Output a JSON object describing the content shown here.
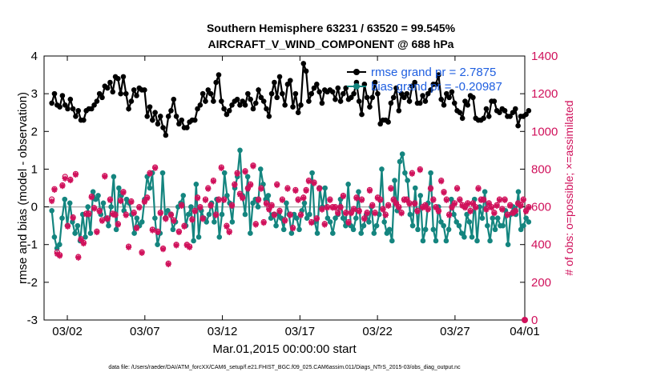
{
  "chart_data": {
    "type": "line",
    "title": "Southern Hemisphere 63231 / 63520 = 99.545%",
    "subtitle": "AIRCRAFT_V_WIND_COMPONENT @ 688 hPa",
    "xlabel": "Mar.01,2015 00:00:00 start",
    "ylabel": "rmse and bias (model - observation)",
    "ylabel_right": "# of obs: o=possible; ×=assimilated",
    "ylim": [
      -3,
      4
    ],
    "ylim_right": [
      0,
      1400
    ],
    "xlim": [
      0.5,
      31.5
    ],
    "x_tick_values": [
      2,
      7,
      12,
      17,
      22,
      27,
      32
    ],
    "x_tick_labels": [
      "03/02",
      "03/07",
      "03/12",
      "03/17",
      "03/22",
      "03/27",
      "04/01"
    ],
    "y_ticks_left": [
      "4",
      "3",
      "2",
      "1",
      "0",
      "-1",
      "-2",
      "-3"
    ],
    "y_ticks_right": [
      "1400",
      "1200",
      "1000",
      "800",
      "600",
      "400",
      "200",
      "0"
    ],
    "legend": [
      "rmse grand pr = 2.7875",
      "bias grand pr = -0.20987"
    ],
    "footer": "data file: /Users/raeder/DAI/ATM_forcXX/CAM6_setup/f.e21.FHIST_BGC.f09_025.CAM6assim.011/Diags_NTrS_2015-03/obs_diag_output.nc",
    "series": [
      {
        "name": "rmse",
        "color": "#000000",
        "values": [
          2.75,
          3.0,
          2.7,
          2.65,
          2.95,
          2.7,
          2.6,
          2.85,
          2.6,
          2.4,
          2.55,
          2.3,
          2.3,
          2.55,
          2.6,
          2.6,
          2.7,
          2.8,
          3.0,
          2.9,
          3.2,
          3.15,
          3.3,
          3.05,
          3.45,
          3.4,
          3.0,
          3.45,
          3.0,
          2.6,
          2.8,
          3.1,
          2.95,
          3.15,
          3.1,
          3.1,
          2.4,
          2.65,
          2.3,
          2.5,
          2.2,
          2.4,
          2.1,
          1.9,
          2.4,
          2.55,
          2.85,
          2.4,
          2.2,
          2.3,
          2.1,
          2.1,
          2.25,
          2.3,
          2.3,
          2.6,
          2.7,
          3.0,
          2.8,
          3.1,
          3.0,
          2.8,
          3.3,
          3.5,
          2.8,
          2.6,
          2.45,
          2.55,
          2.7,
          2.8,
          2.85,
          2.7,
          2.8,
          2.7,
          3.0,
          2.85,
          2.6,
          2.75,
          3.1,
          2.9,
          2.8,
          2.6,
          2.4,
          3.0,
          3.3,
          2.9,
          3.45,
          3.0,
          2.7,
          3.25,
          3.35,
          2.65,
          3.0,
          2.5,
          2.7,
          3.8,
          3.6,
          2.8,
          3.0,
          3.15,
          3.25,
          3.05,
          2.75,
          3.1,
          3.05,
          3.1,
          3.05,
          2.85,
          3.15,
          2.8,
          3.0,
          3.15,
          2.85,
          2.9,
          3.0,
          3.3,
          2.8,
          2.45,
          3.25,
          2.9,
          2.65,
          2.9,
          3.3,
          3.0,
          2.2,
          2.3,
          2.3,
          2.25,
          2.75,
          2.9,
          3.15,
          2.55,
          3.0,
          2.9,
          3.0,
          2.8,
          3.2,
          3.3,
          2.75,
          2.75,
          2.95,
          2.8,
          3.0,
          3.1,
          3.25,
          3.25,
          3.5,
          2.85,
          2.7,
          3.0,
          2.9,
          3.05,
          2.75,
          2.55,
          2.5,
          2.35,
          2.8,
          2.7,
          2.95,
          2.9,
          2.35,
          2.3,
          2.3,
          2.35,
          2.6,
          2.4,
          2.8,
          2.8,
          2.55,
          2.5,
          2.6,
          2.55,
          2.4,
          2.4,
          2.5,
          2.6,
          2.15,
          2.4,
          2.4,
          2.45,
          2.55
        ]
      },
      {
        "name": "bias",
        "color": "#14857f",
        "values": [
          -0.1,
          -0.8,
          -1.1,
          -1.0,
          -0.3,
          0.2,
          -0.5,
          0.1,
          -0.4,
          -0.7,
          -0.5,
          -0.9,
          -0.2,
          -0.8,
          0.0,
          -0.7,
          0.4,
          0.2,
          0.3,
          -0.2,
          0.1,
          -0.3,
          -0.5,
          0.0,
          0.8,
          -0.6,
          0.5,
          0.3,
          -0.1,
          0.2,
          0.1,
          -0.2,
          -0.7,
          -0.3,
          -0.5,
          -0.4,
          0.2,
          0.8,
          0.5,
          0.9,
          -0.3,
          -1.0,
          -0.7,
          0.9,
          -0.3,
          -0.1,
          -0.2,
          -0.6,
          -0.4,
          0.0,
          0.1,
          0.3,
          -0.5,
          -0.2,
          0.0,
          -0.9,
          0.6,
          -0.8,
          -0.1,
          -0.3,
          -0.4,
          -0.2,
          0.1,
          -0.4,
          0.2,
          -0.8,
          -0.2,
          0.9,
          0.3,
          0.1,
          -0.4,
          0.5,
          0.8,
          1.5,
          0.3,
          -0.2,
          0.8,
          -0.7,
          0.1,
          0.2,
          0.0,
          1.0,
          0.6,
          0.2,
          0.3,
          -0.3,
          -0.2,
          -0.5,
          -0.2,
          -0.3,
          -0.6,
          0.1,
          -0.2,
          -0.7,
          -0.2,
          -0.3,
          -0.6,
          -0.1,
          0.1,
          -0.3,
          -0.2,
          0.9,
          -0.4,
          -0.7,
          0.5,
          0.0,
          0.5,
          -0.3,
          -0.4,
          -0.7,
          -0.3,
          -0.2,
          0.2,
          -0.3,
          -0.5,
          0.6,
          -0.5,
          -0.6,
          -0.3,
          0.4,
          -0.7,
          -0.5,
          -0.2,
          -0.4,
          0.0,
          -0.7,
          -0.5,
          -0.2,
          1.0,
          -0.4,
          -0.7,
          -0.6,
          -0.9,
          0.7,
          -0.1,
          1.2,
          1.4,
          0.9,
          0.7,
          -0.2,
          -0.5,
          0.5,
          -0.6,
          0.3,
          -0.9,
          -0.6,
          0.1,
          0.9,
          -0.6,
          -0.9,
          0.0,
          -0.4,
          -0.5,
          -0.9,
          -0.6,
          0.2,
          -0.2,
          -0.4,
          -0.5,
          -0.7,
          -0.8,
          -0.2,
          -0.4,
          -0.8,
          0.2,
          -0.9,
          0.0,
          -0.3,
          0.4,
          -0.5,
          -0.9,
          -0.3,
          -0.6,
          -0.3,
          -0.5,
          -0.5,
          -0.1,
          -1.0,
          -0.2,
          0.0,
          -0.2,
          0.4,
          -0.6,
          -0.5,
          -0.3,
          -0.4
        ]
      },
      {
        "name": "obs_possible",
        "color": "#d0115b",
        "values": [
          640,
          695,
          360,
          345,
          715,
          760,
          500,
          745,
          545,
          775,
          335,
          430,
          410,
          565,
          565,
          655,
          595,
          470,
          580,
          530,
          765,
          540,
          640,
          565,
          560,
          510,
          635,
          680,
          560,
          390,
          630,
          570,
          490,
          600,
          360,
          630,
          650,
          780,
          480,
          810,
          470,
          570,
          380,
          540,
          300,
          560,
          530,
          400,
          470,
          610,
          500,
          400,
          390,
          535,
          580,
          650,
          600,
          540,
          640,
          700,
          610,
          740,
          560,
          640,
          810,
          640,
          500,
          470,
          610,
          720,
          780,
          670,
          650,
          790,
          700,
          720,
          820,
          510,
          640,
          700,
          520,
          620,
          590,
          610,
          560,
          720,
          580,
          640,
          530,
          700,
          560,
          490,
          690,
          640,
          560,
          650,
          690,
          740,
          520,
          730,
          540,
          700,
          590,
          510,
          600,
          640,
          600,
          600,
          570,
          600,
          660,
          570,
          520,
          570,
          590,
          650,
          580,
          640,
          540,
          570,
          690,
          610,
          570,
          650,
          640,
          590,
          560,
          610,
          700,
          640,
          620,
          600,
          570,
          640,
          640,
          620,
          780,
          620,
          580,
          800,
          600,
          610,
          590,
          700,
          640,
          600,
          580,
          740,
          680,
          640,
          560,
          600,
          620,
          700,
          640,
          610,
          600,
          620,
          580,
          620,
          600,
          700,
          640,
          640,
          590,
          620,
          600,
          570,
          610,
          640,
          590,
          640,
          560,
          610,
          570,
          580,
          620,
          610,
          640,
          580,
          600
        ]
      },
      {
        "name": "obs_assimilated",
        "color": "#d0115b",
        "values": [
          630,
          690,
          350,
          340,
          710,
          750,
          495,
          740,
          540,
          770,
          330,
          425,
          405,
          560,
          560,
          650,
          590,
          465,
          575,
          525,
          760,
          535,
          635,
          560,
          555,
          505,
          630,
          675,
          555,
          385,
          625,
          565,
          485,
          595,
          355,
          625,
          645,
          775,
          475,
          805,
          465,
          565,
          375,
          535,
          295,
          555,
          525,
          395,
          465,
          605,
          495,
          395,
          385,
          530,
          575,
          645,
          595,
          535,
          635,
          695,
          605,
          735,
          555,
          635,
          805,
          635,
          495,
          465,
          605,
          715,
          775,
          665,
          645,
          785,
          695,
          715,
          815,
          505,
          635,
          695,
          515,
          615,
          585,
          605,
          555,
          715,
          575,
          635,
          525,
          695,
          555,
          485,
          685,
          635,
          555,
          645,
          685,
          735,
          515,
          725,
          535,
          695,
          585,
          505,
          595,
          635,
          595,
          595,
          565,
          595,
          655,
          565,
          515,
          565,
          585,
          645,
          575,
          635,
          535,
          565,
          685,
          605,
          565,
          645,
          635,
          585,
          555,
          605,
          695,
          635,
          615,
          595,
          565,
          635,
          635,
          615,
          775,
          615,
          575,
          795,
          595,
          605,
          585,
          695,
          635,
          595,
          575,
          735,
          675,
          635,
          555,
          595,
          615,
          695,
          635,
          605,
          595,
          615,
          575,
          615,
          595,
          695,
          635,
          635,
          585,
          615,
          595,
          565,
          605,
          635,
          585,
          635,
          555,
          605,
          565,
          575,
          615,
          605,
          635,
          575,
          595
        ]
      }
    ]
  }
}
